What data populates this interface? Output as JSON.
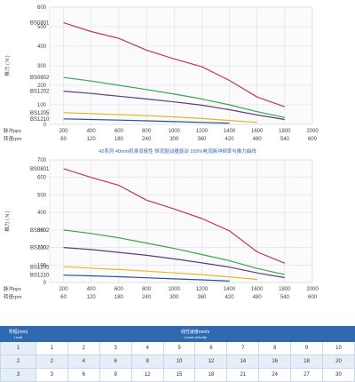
{
  "chart_data": [
    {
      "type": "line",
      "title": "",
      "ylabel": "推力 ( N )",
      "x_row1_label": "脉冲pps",
      "x_row2_label": "转速rpm",
      "x": [
        200,
        400,
        600,
        800,
        1000,
        1200,
        1400,
        1600,
        1800,
        2000
      ],
      "x_rpm": [
        60,
        120,
        180,
        240,
        300,
        360,
        420,
        480,
        540,
        600
      ],
      "ylim": [
        0,
        600
      ],
      "yticks": [
        0,
        100,
        200,
        300,
        400,
        500,
        600
      ],
      "grid": true,
      "series": [
        {
          "name": "BS0801",
          "color": "#c0394a",
          "x": [
            200,
            400,
            600,
            800,
            1000,
            1200,
            1400,
            1600,
            1800
          ],
          "values": [
            520,
            475,
            440,
            380,
            335,
            295,
            225,
            140,
            90
          ]
        },
        {
          "name": "BS0802",
          "color": "#3aa64a",
          "x": [
            200,
            400,
            600,
            800,
            1000,
            1200,
            1400,
            1600,
            1800
          ],
          "values": [
            240,
            222,
            200,
            178,
            155,
            130,
            100,
            65,
            35
          ]
        },
        {
          "name": "BS1202",
          "color": "#5b3d7a",
          "x": [
            200,
            400,
            600,
            800,
            1000,
            1200,
            1400,
            1600,
            1800
          ],
          "values": [
            170,
            158,
            144,
            130,
            115,
            98,
            75,
            48,
            25
          ]
        },
        {
          "name": "BS1205",
          "color": "#e6b52a",
          "x": [
            200,
            400,
            600,
            800,
            1000,
            1200,
            1400,
            1600
          ],
          "values": [
            60,
            55,
            50,
            45,
            38,
            30,
            20,
            10
          ]
        },
        {
          "name": "BS1210",
          "color": "#2a4d9b",
          "x": [
            200,
            400,
            600,
            800,
            1000,
            1200,
            1400
          ],
          "values": [
            28,
            25,
            22,
            18,
            14,
            10,
            6
          ]
        }
      ]
    },
    {
      "type": "line",
      "title": "42系列 40mm机身双极性 恒流驱动器驱动 100%电流脉冲频率与推力曲线",
      "ylabel": "推力 ( N )",
      "x_row1_label": "脉冲pps",
      "x_row2_label": "转速rpm",
      "x": [
        200,
        400,
        600,
        800,
        1000,
        1200,
        1400,
        1600,
        1800,
        2000
      ],
      "x_rpm": [
        60,
        120,
        180,
        240,
        300,
        360,
        420,
        480,
        540,
        600
      ],
      "ylim": [
        0,
        700
      ],
      "yticks": [
        0,
        100,
        200,
        300,
        400,
        500,
        600,
        700
      ],
      "grid": true,
      "series": [
        {
          "name": "BS0801",
          "color": "#c0394a",
          "x": [
            200,
            400,
            600,
            800,
            1000,
            1200,
            1400,
            1600,
            1800
          ],
          "values": [
            650,
            600,
            555,
            470,
            420,
            365,
            295,
            175,
            110
          ]
        },
        {
          "name": "BS0802",
          "color": "#3aa64a",
          "x": [
            200,
            400,
            600,
            800,
            1000,
            1200,
            1400,
            1600,
            1800
          ],
          "values": [
            300,
            280,
            255,
            225,
            195,
            160,
            125,
            80,
            45
          ]
        },
        {
          "name": "BS1202",
          "color": "#5b3d7a",
          "x": [
            200,
            400,
            600,
            800,
            1000,
            1200,
            1400,
            1600,
            1800
          ],
          "values": [
            200,
            188,
            172,
            155,
            135,
            112,
            88,
            55,
            28
          ]
        },
        {
          "name": "BS1205",
          "color": "#e6b52a",
          "x": [
            200,
            400,
            600,
            800,
            1000,
            1200,
            1400,
            1600
          ],
          "values": [
            90,
            82,
            74,
            65,
            55,
            45,
            32,
            18
          ]
        },
        {
          "name": "BS1210",
          "color": "#2a4d9b",
          "x": [
            200,
            400,
            600,
            800,
            1000,
            1200,
            1400
          ],
          "values": [
            42,
            38,
            33,
            27,
            21,
            15,
            8
          ]
        }
      ]
    }
  ],
  "table": {
    "header_left": "导程(mm)",
    "header_left_sub": "Lead",
    "header_main": "线性速度mm/s",
    "header_main_sub": "Linear velocity",
    "rows": [
      [
        "1",
        "1",
        "2",
        "3",
        "4",
        "5",
        "6",
        "7",
        "8",
        "9",
        "10"
      ],
      [
        "2",
        "2",
        "4",
        "6",
        "8",
        "10",
        "12",
        "14",
        "16",
        "18",
        "20"
      ],
      [
        "3",
        "3",
        "6",
        "9",
        "12",
        "15",
        "18",
        "21",
        "24",
        "27",
        "30"
      ]
    ]
  }
}
